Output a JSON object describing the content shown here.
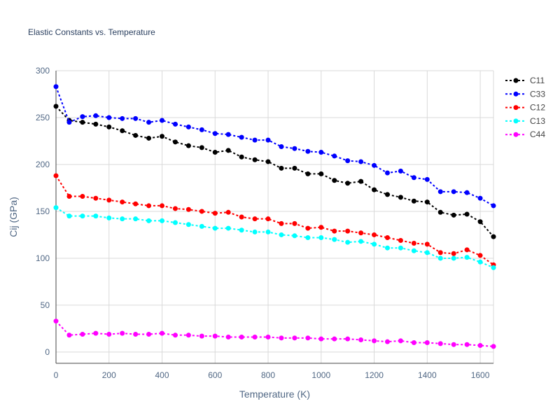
{
  "chart_data": {
    "type": "line",
    "title": "Elastic Constants vs. Temperature",
    "xlabel": "Temperature (K)",
    "ylabel": "Cij (GPa)",
    "xlim": [
      0,
      1650
    ],
    "ylim": [
      -12,
      300
    ],
    "xticks": [
      0,
      200,
      400,
      600,
      800,
      1000,
      1200,
      1400,
      1600
    ],
    "yticks": [
      0,
      50,
      100,
      150,
      200,
      250,
      300
    ],
    "grid": true,
    "legend": "right",
    "line_style": "dotted with circle markers",
    "x": [
      0,
      50,
      100,
      150,
      200,
      250,
      300,
      350,
      400,
      450,
      500,
      550,
      600,
      650,
      700,
      750,
      800,
      850,
      900,
      950,
      1000,
      1050,
      1100,
      1150,
      1200,
      1250,
      1300,
      1350,
      1400,
      1450,
      1500,
      1550,
      1600,
      1650
    ],
    "series": [
      {
        "name": "C11",
        "color": "#000000",
        "values": [
          262,
          247,
          245,
          243,
          240,
          236,
          231,
          228,
          230,
          224,
          220,
          218,
          213,
          215,
          208,
          205,
          203,
          196,
          196,
          190,
          190,
          183,
          180,
          182,
          173,
          168,
          165,
          161,
          160,
          149,
          146,
          147,
          139,
          123
        ]
      },
      {
        "name": "C33",
        "color": "#0000ff",
        "values": [
          283,
          245,
          251,
          252,
          250,
          249,
          249,
          245,
          247,
          243,
          240,
          237,
          233,
          232,
          229,
          226,
          226,
          219,
          217,
          214,
          213,
          209,
          204,
          203,
          199,
          191,
          193,
          186,
          184,
          171,
          171,
          170,
          164,
          156
        ]
      },
      {
        "name": "C12",
        "color": "#ff0000",
        "values": [
          188,
          166,
          166,
          164,
          162,
          160,
          158,
          156,
          156,
          153,
          152,
          150,
          148,
          149,
          144,
          142,
          142,
          137,
          137,
          132,
          133,
          129,
          129,
          127,
          125,
          122,
          119,
          116,
          115,
          106,
          105,
          109,
          103,
          93
        ]
      },
      {
        "name": "C13",
        "color": "#00ffff",
        "values": [
          154,
          145,
          145,
          145,
          143,
          142,
          142,
          140,
          140,
          138,
          136,
          134,
          132,
          132,
          130,
          128,
          128,
          125,
          124,
          122,
          122,
          120,
          117,
          118,
          115,
          111,
          111,
          108,
          106,
          100,
          100,
          101,
          96,
          90
        ]
      },
      {
        "name": "C44",
        "color": "#ff00ff",
        "values": [
          33,
          18,
          19,
          20,
          19,
          20,
          19,
          19,
          20,
          18,
          18,
          17,
          17,
          16,
          16,
          16,
          16,
          15,
          15,
          15,
          14,
          14,
          14,
          13,
          12,
          11,
          12,
          10,
          10,
          9,
          8,
          8,
          7,
          6
        ]
      }
    ]
  }
}
